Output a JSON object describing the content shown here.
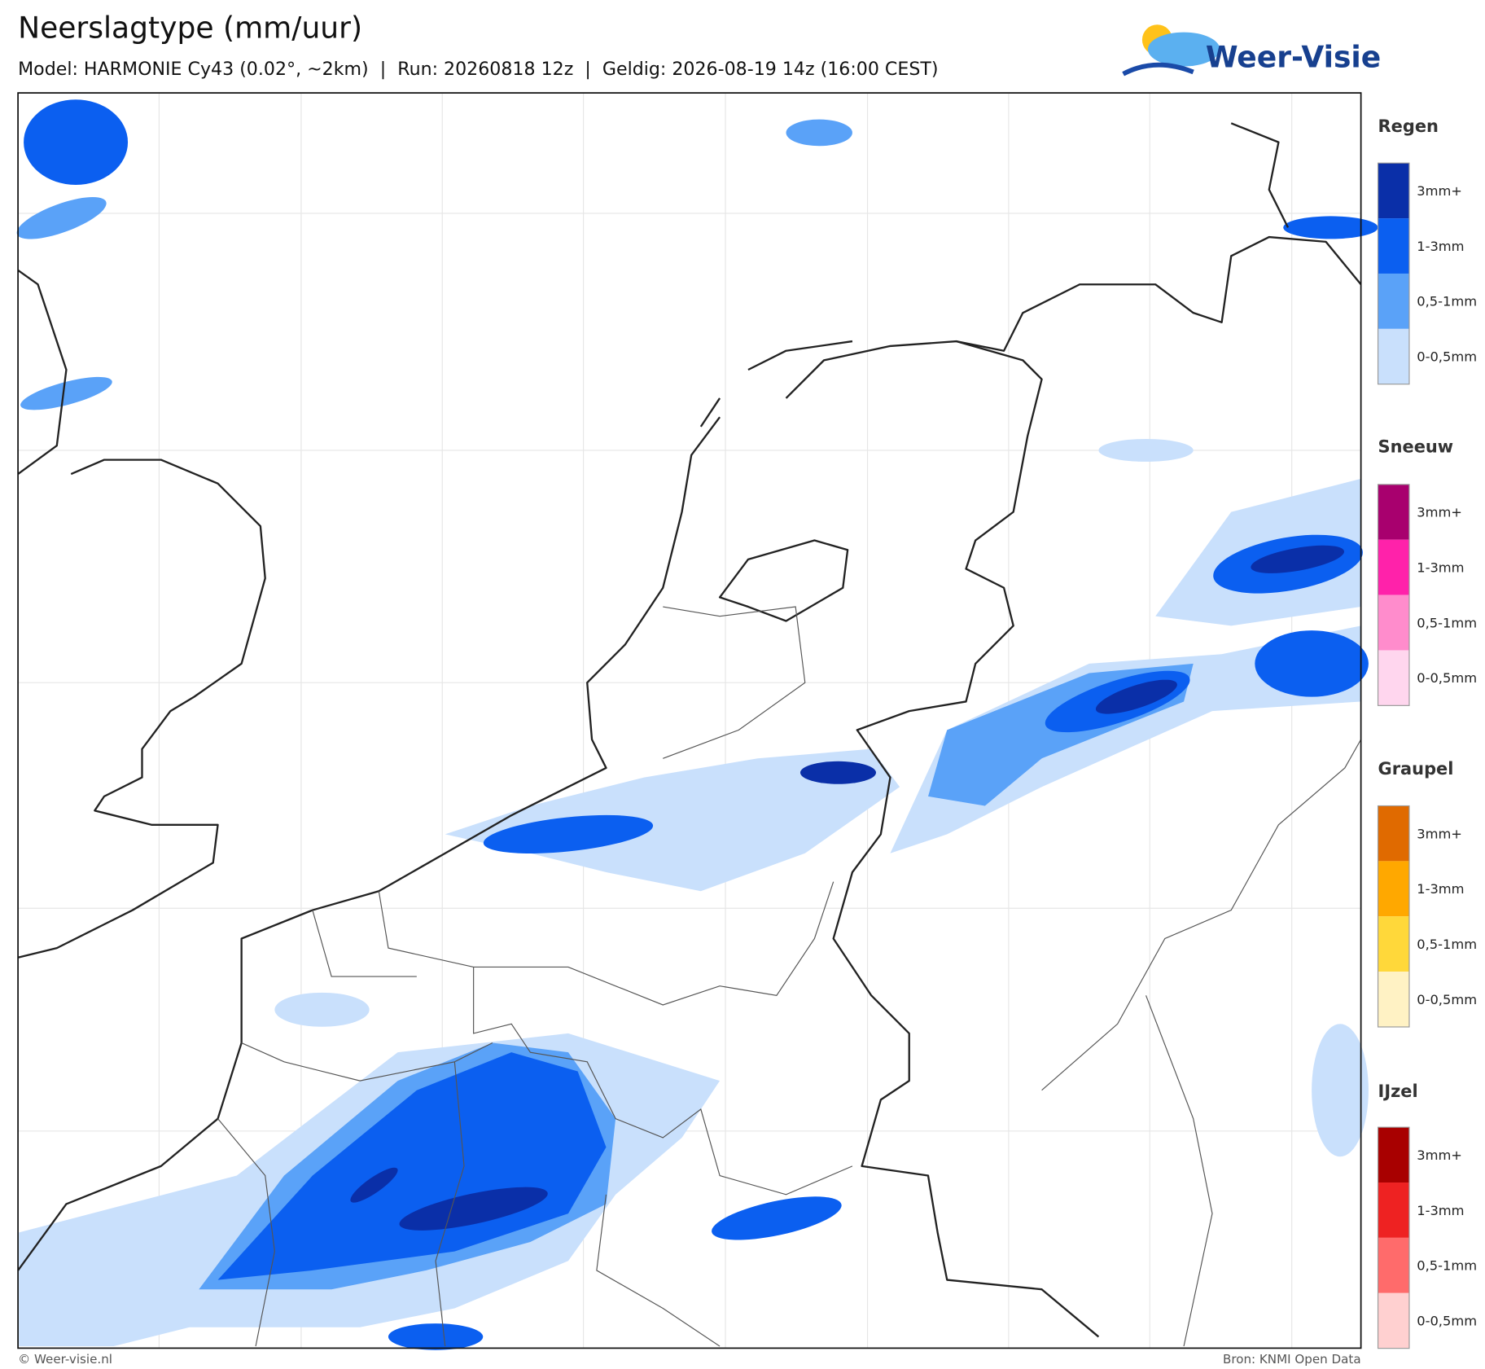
{
  "header": {
    "title": "Neerslagtype (mm/uur)",
    "subtitle": "Model: HARMONIE Cy43 (0.02°, ~2km)  |  Run: 20260818 12z  |  Geldig: 2026-08-19 14z (16:00 CEST)"
  },
  "logo": {
    "text": "Weer-Visie"
  },
  "legend": {
    "groups": [
      {
        "title": "Regen",
        "items": [
          {
            "label": "3mm+",
            "color": "#0a2fa8"
          },
          {
            "label": "1-3mm",
            "color": "#0b5ff0"
          },
          {
            "label": "0,5-1mm",
            "color": "#5aa2f8"
          },
          {
            "label": "0-0,5mm",
            "color": "#c9e0fc"
          }
        ]
      },
      {
        "title": "Sneeuw",
        "items": [
          {
            "label": "3mm+",
            "color": "#a8006e"
          },
          {
            "label": "1-3mm",
            "color": "#ff22aa"
          },
          {
            "label": "0,5-1mm",
            "color": "#ff8ccc"
          },
          {
            "label": "0-0,5mm",
            "color": "#ffd6ee"
          }
        ]
      },
      {
        "title": "Graupel",
        "items": [
          {
            "label": "3mm+",
            "color": "#e06a00"
          },
          {
            "label": "1-3mm",
            "color": "#ffa800"
          },
          {
            "label": "0,5-1mm",
            "color": "#ffd83a"
          },
          {
            "label": "0-0,5mm",
            "color": "#fff2c4"
          }
        ]
      },
      {
        "title": "IJzel",
        "items": [
          {
            "label": "3mm+",
            "color": "#a80000"
          },
          {
            "label": "1-3mm",
            "color": "#ee2222"
          },
          {
            "label": "0,5-1mm",
            "color": "#ff6b6b"
          },
          {
            "label": "0-0,5mm",
            "color": "#ffd0d0"
          }
        ]
      }
    ]
  },
  "footer": {
    "left": "© Weer-visie.nl",
    "right": "Bron: KNMI Open Data"
  }
}
